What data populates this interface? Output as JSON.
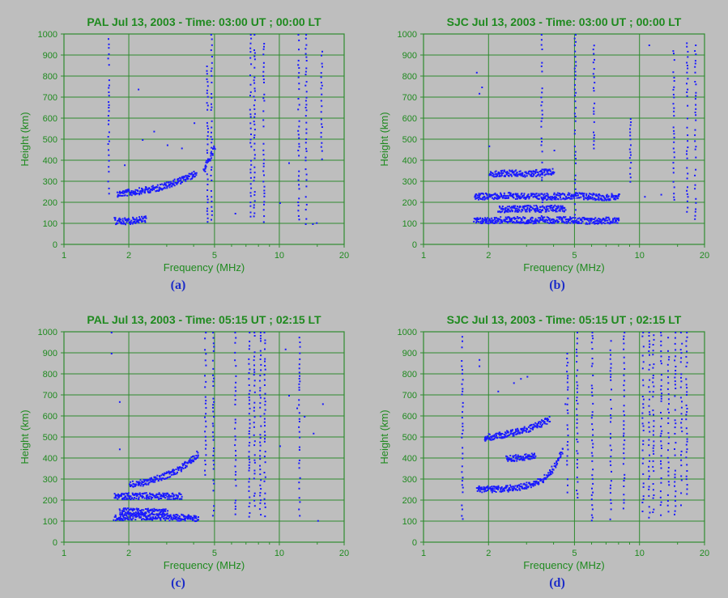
{
  "figure": {
    "colors": {
      "background": "#bebebe",
      "axis_text": "#1f8a1f",
      "grid": "#2e8b2e",
      "data": "#1a1aff",
      "caption": "#1c2cc8"
    }
  },
  "chart_data": [
    {
      "type": "scatter",
      "title": "PAL Jul 13, 2003 - Time: 03:00 UT ; 00:00 LT",
      "caption": "(a)",
      "xlabel": "Frequency (MHz)",
      "ylabel": "Height (km)",
      "xscale": "log",
      "xlim": [
        1,
        20
      ],
      "ylim": [
        0,
        1000
      ],
      "xticks": [
        1,
        2,
        5,
        10,
        20
      ],
      "yticks": [
        0,
        100,
        200,
        300,
        400,
        500,
        600,
        700,
        800,
        900,
        1000
      ],
      "grid": true,
      "traces": [
        {
          "x": [
            1.75,
            1.8,
            1.9,
            2.0,
            2.2,
            2.4,
            2.7,
            3.0,
            3.3,
            3.6,
            3.9,
            4.1
          ],
          "y": [
            245,
            245,
            248,
            250,
            256,
            262,
            272,
            285,
            300,
            315,
            330,
            345
          ]
        },
        {
          "x": [
            4.4,
            4.6,
            4.8,
            5.0
          ],
          "y": [
            355,
            390,
            430,
            470
          ]
        },
        {
          "x": [
            1.7,
            1.8,
            2.0,
            2.2,
            2.4
          ],
          "y": [
            115,
            113,
            115,
            120,
            125
          ]
        }
      ],
      "columns": [
        {
          "x": 1.6,
          "ymin": 240,
          "ymax": 980
        },
        {
          "x": 4.6,
          "ymin": 110,
          "ymax": 850
        },
        {
          "x": 4.8,
          "ymin": 120,
          "ymax": 1000
        },
        {
          "x": 7.3,
          "ymin": 100,
          "ymax": 1000
        },
        {
          "x": 7.6,
          "ymin": 120,
          "ymax": 1000
        },
        {
          "x": 8.4,
          "ymin": 100,
          "ymax": 1000
        },
        {
          "x": 12.2,
          "ymin": 110,
          "ymax": 1000
        },
        {
          "x": 13.2,
          "ymin": 100,
          "ymax": 1000
        },
        {
          "x": 15.6,
          "ymin": 400,
          "ymax": 950
        }
      ],
      "points": [
        {
          "x": 2.2,
          "y": 740
        },
        {
          "x": 2.6,
          "y": 540
        },
        {
          "x": 3.0,
          "y": 475
        },
        {
          "x": 2.3,
          "y": 500
        },
        {
          "x": 4.0,
          "y": 580
        },
        {
          "x": 1.9,
          "y": 380
        },
        {
          "x": 3.5,
          "y": 460
        },
        {
          "x": 11.0,
          "y": 390
        },
        {
          "x": 14.2,
          "y": 100
        },
        {
          "x": 14.8,
          "y": 105
        },
        {
          "x": 10.0,
          "y": 200
        },
        {
          "x": 6.2,
          "y": 150
        }
      ]
    },
    {
      "type": "scatter",
      "title": "SJC Jul 13, 2003 - Time: 03:00 UT ; 00:00 LT",
      "caption": "(b)",
      "xlabel": "Frequency (MHz)",
      "ylabel": "Height (km)",
      "xscale": "log",
      "xlim": [
        1,
        20
      ],
      "ylim": [
        0,
        1000
      ],
      "xticks": [
        1,
        2,
        5,
        10,
        20
      ],
      "yticks": [
        0,
        100,
        200,
        300,
        400,
        500,
        600,
        700,
        800,
        900,
        1000
      ],
      "grid": true,
      "traces": [
        {
          "x": [
            1.7,
            2.0,
            2.5,
            3.0,
            3.5,
            4.0,
            5.0,
            6.0,
            7.0,
            8.0
          ],
          "y": [
            230,
            232,
            235,
            233,
            230,
            232,
            235,
            230,
            228,
            230
          ]
        },
        {
          "x": [
            1.7,
            2.0,
            2.5,
            3.0,
            3.5,
            4.0,
            5.0,
            6.0,
            7.0,
            8.0
          ],
          "y": [
            115,
            118,
            120,
            118,
            117,
            120,
            118,
            115,
            117,
            118
          ]
        },
        {
          "x": [
            2.2,
            2.6,
            3.0,
            3.5,
            4.0,
            4.5
          ],
          "y": [
            170,
            172,
            175,
            172,
            175,
            170
          ]
        },
        {
          "x": [
            2.0,
            2.5,
            3.0,
            3.5,
            4.0
          ],
          "y": [
            340,
            342,
            338,
            345,
            350
          ]
        }
      ],
      "columns": [
        {
          "x": 3.5,
          "ymin": 100,
          "ymax": 1000
        },
        {
          "x": 5.0,
          "ymin": 100,
          "ymax": 1000
        },
        {
          "x": 6.1,
          "ymin": 420,
          "ymax": 1000
        },
        {
          "x": 9.0,
          "ymin": 280,
          "ymax": 600
        },
        {
          "x": 14.3,
          "ymin": 200,
          "ymax": 950
        },
        {
          "x": 16.5,
          "ymin": 100,
          "ymax": 980
        },
        {
          "x": 18.0,
          "ymin": 100,
          "ymax": 980
        }
      ],
      "points": [
        {
          "x": 1.75,
          "y": 820
        },
        {
          "x": 1.8,
          "y": 720
        },
        {
          "x": 1.85,
          "y": 750
        },
        {
          "x": 2.0,
          "y": 470
        },
        {
          "x": 4.0,
          "y": 450
        },
        {
          "x": 10.5,
          "y": 230
        },
        {
          "x": 11.0,
          "y": 950
        },
        {
          "x": 12.5,
          "y": 240
        }
      ]
    },
    {
      "type": "scatter",
      "title": "PAL Jul 13, 2003 - Time: 05:15 UT ; 02:15 LT",
      "caption": "(c)",
      "xlabel": "Frequency (MHz)",
      "ylabel": "Height (km)",
      "xscale": "log",
      "xlim": [
        1,
        20
      ],
      "ylim": [
        0,
        1000
      ],
      "xticks": [
        1,
        2,
        5,
        10,
        20
      ],
      "yticks": [
        0,
        100,
        200,
        300,
        400,
        500,
        600,
        700,
        800,
        900,
        1000
      ],
      "grid": true,
      "traces": [
        {
          "x": [
            1.7,
            2.0,
            2.5,
            3.0,
            3.5,
            4.0,
            4.2
          ],
          "y": [
            120,
            125,
            125,
            122,
            120,
            118,
            118
          ]
        },
        {
          "x": [
            1.8,
            2.0,
            2.5,
            3.0
          ],
          "y": [
            150,
            150,
            148,
            145
          ]
        },
        {
          "x": [
            1.7,
            2.0,
            2.5,
            3.0,
            3.5
          ],
          "y": [
            222,
            222,
            224,
            222,
            224
          ]
        },
        {
          "x": [
            2.0,
            2.2,
            2.5,
            2.8,
            3.1,
            3.4,
            3.7,
            4.0,
            4.2
          ],
          "y": [
            275,
            282,
            295,
            310,
            330,
            350,
            375,
            405,
            430
          ]
        }
      ],
      "columns": [
        {
          "x": 4.5,
          "ymin": 280,
          "ymax": 1000
        },
        {
          "x": 4.9,
          "ymin": 120,
          "ymax": 1000
        },
        {
          "x": 6.2,
          "ymin": 120,
          "ymax": 1000
        },
        {
          "x": 7.2,
          "ymin": 120,
          "ymax": 1000
        },
        {
          "x": 7.6,
          "ymin": 120,
          "ymax": 1000
        },
        {
          "x": 8.1,
          "ymin": 120,
          "ymax": 1000
        },
        {
          "x": 8.5,
          "ymin": 120,
          "ymax": 1000
        },
        {
          "x": 12.3,
          "ymin": 120,
          "ymax": 1000
        }
      ],
      "points": [
        {
          "x": 1.65,
          "y": 1000
        },
        {
          "x": 1.65,
          "y": 900
        },
        {
          "x": 1.8,
          "y": 670
        },
        {
          "x": 1.8,
          "y": 445
        },
        {
          "x": 10.0,
          "y": 460
        },
        {
          "x": 10.6,
          "y": 920
        },
        {
          "x": 11.0,
          "y": 700
        },
        {
          "x": 12.0,
          "y": 640
        },
        {
          "x": 13.0,
          "y": 600
        },
        {
          "x": 14.3,
          "y": 520
        },
        {
          "x": 15.8,
          "y": 660
        },
        {
          "x": 15.0,
          "y": 105
        }
      ]
    },
    {
      "type": "scatter",
      "title": "SJC Jul 13, 2003 - Time: 05:15 UT ; 02:15 LT",
      "caption": "(d)",
      "xlabel": "Frequency (MHz)",
      "ylabel": "Height (km)",
      "xscale": "log",
      "xlim": [
        1,
        20
      ],
      "ylim": [
        0,
        1000
      ],
      "xticks": [
        1,
        2,
        5,
        10,
        20
      ],
      "yticks": [
        0,
        100,
        200,
        300,
        400,
        500,
        600,
        700,
        800,
        900,
        1000
      ],
      "grid": true,
      "traces": [
        {
          "x": [
            1.75,
            2.0,
            2.4,
            2.8,
            3.2,
            3.5,
            3.8,
            4.0,
            4.2,
            4.4
          ],
          "y": [
            255,
            255,
            258,
            265,
            280,
            300,
            330,
            360,
            400,
            450
          ]
        },
        {
          "x": [
            1.9,
            2.2,
            2.6,
            3.0,
            3.4,
            3.8
          ],
          "y": [
            500,
            510,
            525,
            540,
            560,
            590
          ]
        },
        {
          "x": [
            2.4,
            2.7,
            3.0,
            3.3
          ],
          "y": [
            400,
            405,
            410,
            420
          ]
        }
      ],
      "columns": [
        {
          "x": 1.5,
          "ymin": 100,
          "ymax": 980
        },
        {
          "x": 4.6,
          "ymin": 200,
          "ymax": 900
        },
        {
          "x": 5.1,
          "ymin": 200,
          "ymax": 1000
        },
        {
          "x": 6.0,
          "ymin": 100,
          "ymax": 1000
        },
        {
          "x": 7.3,
          "ymin": 100,
          "ymax": 1000
        },
        {
          "x": 8.4,
          "ymin": 130,
          "ymax": 1000
        },
        {
          "x": 10.3,
          "ymin": 150,
          "ymax": 1000
        },
        {
          "x": 11.0,
          "ymin": 120,
          "ymax": 1000
        },
        {
          "x": 11.5,
          "ymin": 120,
          "ymax": 1000
        },
        {
          "x": 12.5,
          "ymin": 120,
          "ymax": 1000
        },
        {
          "x": 13.5,
          "ymin": 120,
          "ymax": 1000
        },
        {
          "x": 14.5,
          "ymin": 120,
          "ymax": 1000
        },
        {
          "x": 15.5,
          "ymin": 150,
          "ymax": 1000
        },
        {
          "x": 16.4,
          "ymin": 200,
          "ymax": 1000
        }
      ],
      "points": [
        {
          "x": 1.8,
          "y": 840
        },
        {
          "x": 1.8,
          "y": 870
        },
        {
          "x": 2.6,
          "y": 760
        },
        {
          "x": 3.0,
          "y": 790
        },
        {
          "x": 2.8,
          "y": 780
        },
        {
          "x": 2.2,
          "y": 720
        },
        {
          "x": 3.8,
          "y": 600
        },
        {
          "x": 4.5,
          "y": 660
        }
      ]
    }
  ]
}
